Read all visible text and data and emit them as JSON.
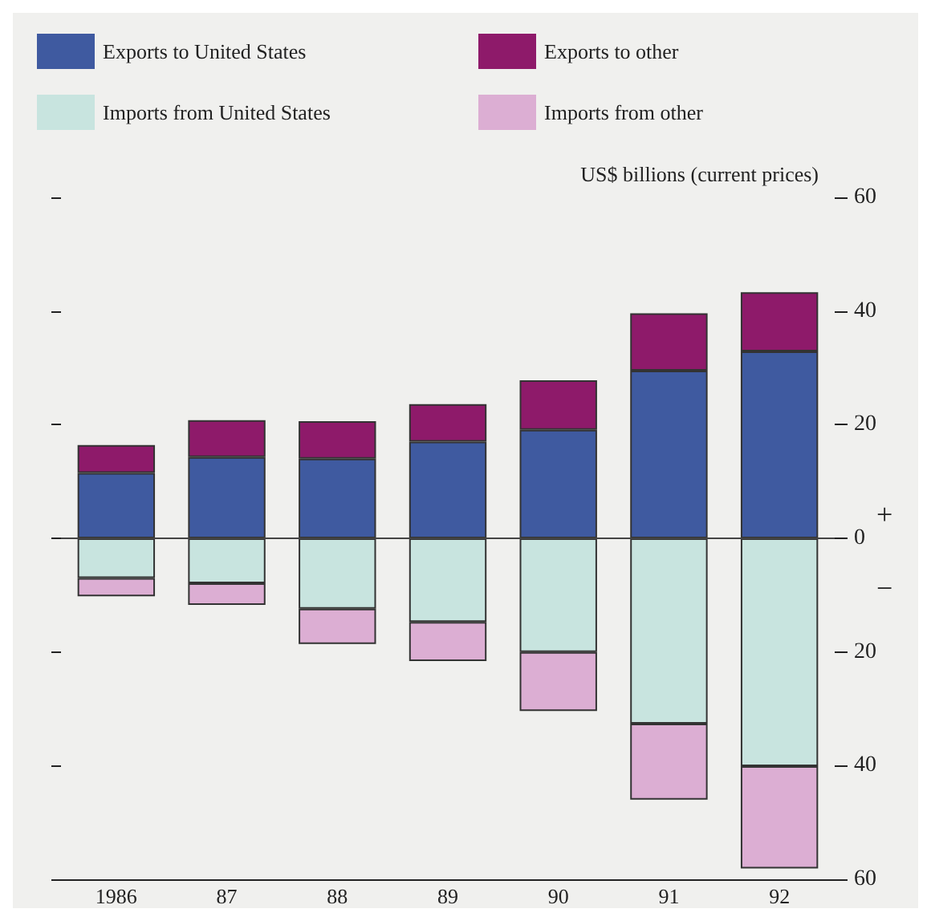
{
  "chart_data": {
    "type": "bar",
    "stacked": true,
    "ylabel": "US$ billions (current prices)",
    "categories": [
      "1986",
      "87",
      "88",
      "89",
      "90",
      "91",
      "92"
    ],
    "series": [
      {
        "name": "Exports to United States",
        "color": "#3f5aa0",
        "values": [
          11.5,
          14.3,
          14.0,
          17.0,
          19.1,
          29.5,
          32.9
        ]
      },
      {
        "name": "Imports from United States",
        "color": "#c8e4df",
        "values": [
          -7.0,
          -7.9,
          -12.4,
          -14.7,
          -20.0,
          -32.6,
          -40.1
        ]
      },
      {
        "name": "Exports to other",
        "color": "#8e1a6a",
        "values": [
          4.9,
          6.5,
          6.6,
          6.6,
          8.7,
          10.1,
          10.4
        ]
      },
      {
        "name": "Imports from other",
        "color": "#dcaed3",
        "values": [
          -3.2,
          -3.8,
          -6.2,
          -6.9,
          -10.4,
          -13.4,
          -18.0
        ]
      }
    ],
    "ylim": [
      -60,
      60
    ],
    "yticks": [
      {
        "value": -60,
        "label": "60"
      },
      {
        "value": -40,
        "label": "40"
      },
      {
        "value": -20,
        "label": "20"
      },
      0,
      20,
      40,
      60
    ],
    "ref_lines": [
      {
        "axis": "y",
        "value": 0
      }
    ],
    "annotations": [
      "+",
      "−"
    ],
    "legend": "top left",
    "grid": false
  }
}
